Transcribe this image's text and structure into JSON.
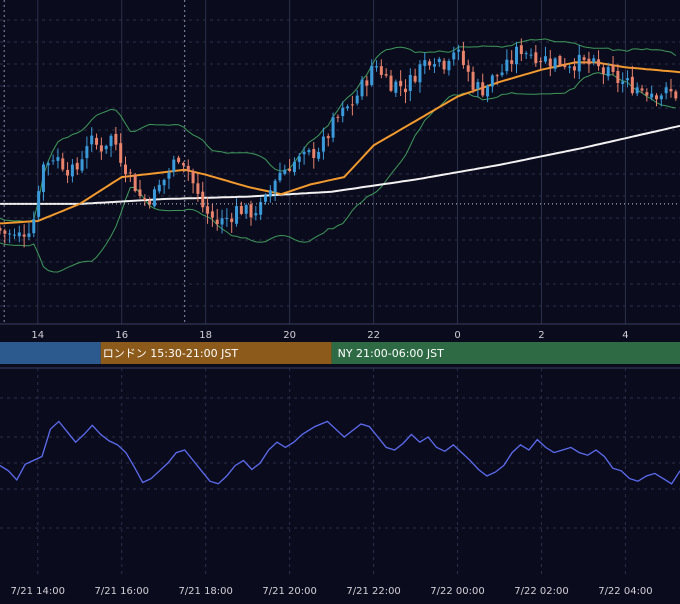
{
  "colors": {
    "background": "#0b0b1e",
    "grid": "#2b2f48",
    "candle_up": "#3b9ad9",
    "candle_down": "#e8836c",
    "bollinger": "#3e9a5a",
    "ma_short": "#f29a2e",
    "ma_long": "#f2f2f2",
    "current_price_line": "#c8c8c8",
    "oscillator": "#5c6cf0",
    "session_tokyo": "#2d5a8e",
    "session_london": "#8c5a1a",
    "session_ny": "#2e6b45"
  },
  "sessions": [
    {
      "label": ""
    },
    {
      "label": "ロンドン 15:30-21:00 JST"
    },
    {
      "label": "NY 21:00-06:00 JST"
    }
  ],
  "chart_data": [
    {
      "type": "candlestick",
      "title": "",
      "x_ticks": [
        "14",
        "16",
        "18",
        "20",
        "22",
        "0",
        "2",
        "4"
      ],
      "x_tick_hours": [
        14,
        16,
        18,
        20,
        22,
        24,
        26,
        28
      ],
      "x_range_hours": [
        13.1,
        29.3
      ],
      "y_range": [
        0,
        100
      ],
      "grid": true,
      "indicators": [
        "bollinger_bands",
        "moving_average_short",
        "moving_average_long"
      ],
      "current_price_level": 32,
      "price_anchors": [
        [
          13.1,
          22
        ],
        [
          13.6,
          18
        ],
        [
          14.0,
          24
        ],
        [
          14.2,
          47
        ],
        [
          14.5,
          52
        ],
        [
          15.0,
          44
        ],
        [
          15.3,
          58
        ],
        [
          15.6,
          55
        ],
        [
          15.9,
          60
        ],
        [
          16.1,
          51
        ],
        [
          16.4,
          41
        ],
        [
          16.6,
          33
        ],
        [
          16.9,
          36
        ],
        [
          17.2,
          44
        ],
        [
          17.5,
          53
        ],
        [
          17.7,
          46
        ],
        [
          17.9,
          36
        ],
        [
          18.1,
          29
        ],
        [
          18.4,
          24
        ],
        [
          18.7,
          27
        ],
        [
          18.9,
          31
        ],
        [
          19.1,
          28
        ],
        [
          19.5,
          31
        ],
        [
          19.8,
          44
        ],
        [
          20.1,
          48
        ],
        [
          20.5,
          51
        ],
        [
          20.9,
          56
        ],
        [
          21.2,
          66
        ],
        [
          21.6,
          73
        ],
        [
          22.0,
          85
        ],
        [
          22.2,
          89
        ],
        [
          22.5,
          82
        ],
        [
          22.9,
          80
        ],
        [
          23.2,
          88
        ],
        [
          23.5,
          93
        ],
        [
          23.8,
          90
        ],
        [
          24.0,
          96
        ],
        [
          24.2,
          91
        ],
        [
          24.5,
          81
        ],
        [
          24.7,
          79
        ],
        [
          25.0,
          84
        ],
        [
          25.3,
          88
        ],
        [
          25.6,
          96
        ],
        [
          26.0,
          93
        ],
        [
          26.3,
          91
        ],
        [
          26.6,
          90
        ],
        [
          27.0,
          90
        ],
        [
          27.3,
          89
        ],
        [
          27.7,
          85
        ],
        [
          28.0,
          82
        ],
        [
          28.4,
          80
        ],
        [
          28.8,
          78
        ],
        [
          29.3,
          77
        ]
      ],
      "ma_short": [
        [
          13.1,
          24
        ],
        [
          14.0,
          25
        ],
        [
          15.0,
          32
        ],
        [
          16.0,
          43
        ],
        [
          17.0,
          45
        ],
        [
          17.5,
          46
        ],
        [
          18.0,
          44
        ],
        [
          19.0,
          39
        ],
        [
          19.8,
          36
        ],
        [
          20.5,
          40
        ],
        [
          21.3,
          43
        ],
        [
          22.0,
          56
        ],
        [
          23.0,
          66
        ],
        [
          24.0,
          76
        ],
        [
          25.0,
          82
        ],
        [
          26.0,
          87
        ],
        [
          26.8,
          90
        ],
        [
          27.3,
          90
        ],
        [
          28.0,
          88
        ],
        [
          29.3,
          86
        ]
      ],
      "ma_long": [
        [
          13.1,
          32
        ],
        [
          15.0,
          32
        ],
        [
          17.0,
          34
        ],
        [
          19.0,
          35
        ],
        [
          21.0,
          37
        ],
        [
          23.0,
          42
        ],
        [
          25.0,
          48
        ],
        [
          27.0,
          55
        ],
        [
          29.3,
          64
        ]
      ]
    },
    {
      "type": "line",
      "title": "",
      "x_ticks": [
        "7/21 14:00",
        "7/21 16:00",
        "7/21 18:00",
        "7/21 20:00",
        "7/21 22:00",
        "7/22 00:00",
        "7/22 02:00",
        "7/22 04:00"
      ],
      "x_tick_hours": [
        14,
        16,
        18,
        20,
        22,
        24,
        26,
        28
      ],
      "x_range_hours": [
        13.1,
        29.3
      ],
      "y_range": [
        0,
        100
      ],
      "grid": true,
      "reference_levels": [
        30,
        50,
        70
      ],
      "series": [
        {
          "name": "",
          "values": [
            [
              13.1,
              48
            ],
            [
              13.3,
              44
            ],
            [
              13.5,
              37
            ],
            [
              13.7,
              49
            ],
            [
              13.9,
              52
            ],
            [
              14.1,
              55
            ],
            [
              14.3,
              76
            ],
            [
              14.5,
              82
            ],
            [
              14.7,
              74
            ],
            [
              14.9,
              66
            ],
            [
              15.1,
              72
            ],
            [
              15.3,
              79
            ],
            [
              15.5,
              72
            ],
            [
              15.7,
              67
            ],
            [
              15.9,
              64
            ],
            [
              16.1,
              58
            ],
            [
              16.3,
              47
            ],
            [
              16.5,
              35
            ],
            [
              16.7,
              38
            ],
            [
              16.9,
              44
            ],
            [
              17.1,
              50
            ],
            [
              17.3,
              58
            ],
            [
              17.5,
              60
            ],
            [
              17.7,
              52
            ],
            [
              17.9,
              44
            ],
            [
              18.1,
              36
            ],
            [
              18.3,
              34
            ],
            [
              18.5,
              40
            ],
            [
              18.7,
              48
            ],
            [
              18.9,
              52
            ],
            [
              19.1,
              45
            ],
            [
              19.3,
              50
            ],
            [
              19.5,
              60
            ],
            [
              19.7,
              66
            ],
            [
              19.9,
              62
            ],
            [
              20.1,
              66
            ],
            [
              20.3,
              72
            ],
            [
              20.6,
              78
            ],
            [
              20.9,
              82
            ],
            [
              21.1,
              76
            ],
            [
              21.3,
              70
            ],
            [
              21.5,
              75
            ],
            [
              21.7,
              80
            ],
            [
              21.9,
              78
            ],
            [
              22.1,
              70
            ],
            [
              22.3,
              62
            ],
            [
              22.5,
              60
            ],
            [
              22.7,
              65
            ],
            [
              22.9,
              72
            ],
            [
              23.1,
              66
            ],
            [
              23.3,
              70
            ],
            [
              23.5,
              62
            ],
            [
              23.7,
              59
            ],
            [
              23.9,
              64
            ],
            [
              24.1,
              58
            ],
            [
              24.3,
              52
            ],
            [
              24.5,
              45
            ],
            [
              24.7,
              40
            ],
            [
              24.9,
              43
            ],
            [
              25.1,
              48
            ],
            [
              25.3,
              58
            ],
            [
              25.5,
              64
            ],
            [
              25.7,
              60
            ],
            [
              25.9,
              68
            ],
            [
              26.1,
              62
            ],
            [
              26.3,
              58
            ],
            [
              26.5,
              60
            ],
            [
              26.7,
              62
            ],
            [
              26.9,
              58
            ],
            [
              27.1,
              56
            ],
            [
              27.3,
              60
            ],
            [
              27.5,
              55
            ],
            [
              27.7,
              46
            ],
            [
              27.9,
              44
            ],
            [
              28.1,
              38
            ],
            [
              28.3,
              36
            ],
            [
              28.5,
              40
            ],
            [
              28.7,
              42
            ],
            [
              28.9,
              38
            ],
            [
              29.1,
              34
            ],
            [
              29.3,
              44
            ]
          ]
        }
      ]
    }
  ]
}
